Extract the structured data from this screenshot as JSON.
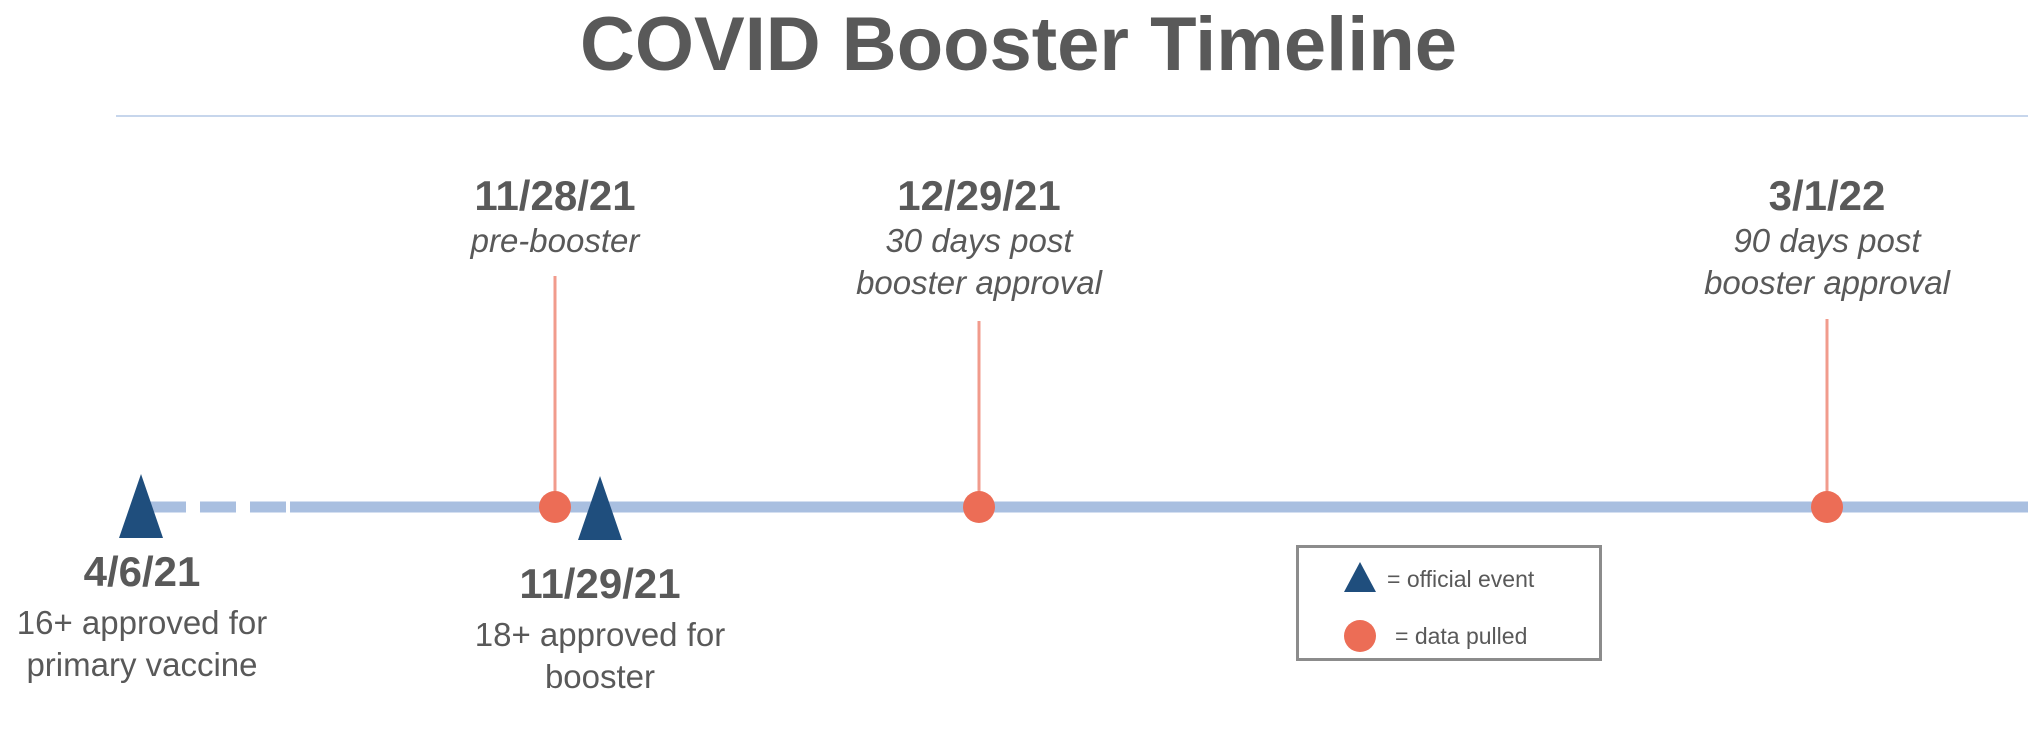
{
  "title": "COVID Booster Timeline",
  "colors": {
    "axis": "#a9bfe0",
    "official_event": "#1f4e7d",
    "data_pulled": "#ec6d56",
    "connector": "#f19b8c",
    "text": "#595959"
  },
  "events": [
    {
      "date": "4/6/21",
      "line1": "16+ approved for",
      "line2": "primary vaccine",
      "marker": "triangle-icon"
    },
    {
      "date": "11/28/21",
      "line1": "pre-booster",
      "line2": "",
      "marker": "circle-icon"
    },
    {
      "date": "11/29/21",
      "line1": "18+ approved for",
      "line2": "booster",
      "marker": "triangle-icon"
    },
    {
      "date": "12/29/21",
      "line1": "30 days post",
      "line2": "booster approval",
      "marker": "circle-icon"
    },
    {
      "date": "3/1/22",
      "line1": "90 days post",
      "line2": "booster approval",
      "marker": "circle-icon"
    }
  ],
  "legend": {
    "official_event": "= official event",
    "data_pulled": "= data pulled"
  }
}
